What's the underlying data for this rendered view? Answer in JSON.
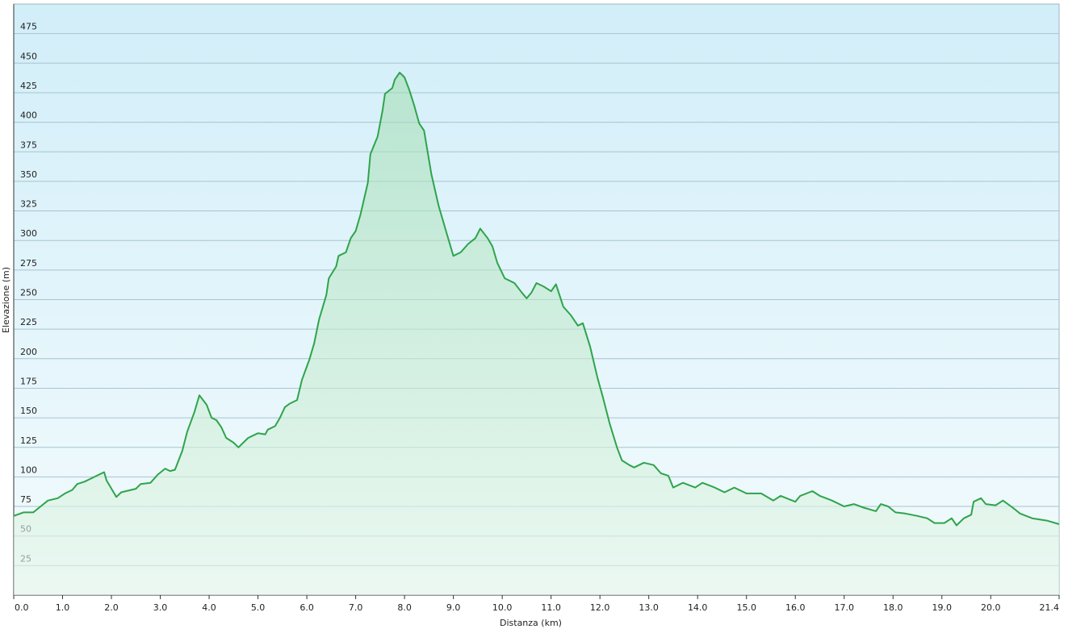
{
  "chart_data": {
    "type": "area",
    "xlabel": "Distanza  (km)",
    "ylabel": "Elevazione (m)",
    "xlim": [
      0,
      21.4
    ],
    "ylim": [
      0,
      500
    ],
    "xticks": [
      {
        "value": 0,
        "label": "0.0"
      },
      {
        "value": 1,
        "label": "1.0"
      },
      {
        "value": 2,
        "label": "2.0"
      },
      {
        "value": 3,
        "label": "3.0"
      },
      {
        "value": 4,
        "label": "4.0"
      },
      {
        "value": 5,
        "label": "5.0"
      },
      {
        "value": 6,
        "label": "6.0"
      },
      {
        "value": 7,
        "label": "7.0"
      },
      {
        "value": 8,
        "label": "8.0"
      },
      {
        "value": 9,
        "label": "9.0"
      },
      {
        "value": 10,
        "label": "10.0"
      },
      {
        "value": 11,
        "label": "11.0"
      },
      {
        "value": 12,
        "label": "12.0"
      },
      {
        "value": 13,
        "label": "13.0"
      },
      {
        "value": 14,
        "label": "14.0"
      },
      {
        "value": 15,
        "label": "15.0"
      },
      {
        "value": 16,
        "label": "16.0"
      },
      {
        "value": 17,
        "label": "17.0"
      },
      {
        "value": 18,
        "label": "18.0"
      },
      {
        "value": 19,
        "label": "19.0"
      },
      {
        "value": 20,
        "label": "20.0"
      },
      21.4
    ],
    "yticks": [
      25,
      50,
      75,
      100,
      125,
      150,
      175,
      200,
      225,
      250,
      275,
      300,
      325,
      350,
      375,
      400,
      425,
      450,
      475
    ],
    "grid": true,
    "color": "#2ea44b",
    "x": [
      0,
      0.2,
      0.4,
      0.55,
      0.7,
      0.9,
      1.05,
      1.2,
      1.3,
      1.45,
      1.6,
      1.85,
      1.9,
      2.1,
      2.2,
      2.3,
      2.5,
      2.6,
      2.8,
      2.95,
      3.1,
      3.2,
      3.3,
      3.45,
      3.55,
      3.7,
      3.75,
      3.8,
      3.95,
      4.05,
      4.15,
      4.25,
      4.35,
      4.5,
      4.6,
      4.7,
      4.8,
      5.0,
      5.15,
      5.2,
      5.35,
      5.45,
      5.55,
      5.65,
      5.8,
      5.9,
      6.05,
      6.15,
      6.25,
      6.4,
      6.45,
      6.6,
      6.65,
      6.8,
      6.9,
      7.0,
      7.1,
      7.25,
      7.3,
      7.45,
      7.55,
      7.6,
      7.75,
      7.8,
      7.9,
      8.0,
      8.1,
      8.2,
      8.3,
      8.4,
      8.55,
      8.7,
      8.85,
      9.0,
      9.15,
      9.3,
      9.45,
      9.55,
      9.7,
      9.8,
      9.9,
      10.05,
      10.25,
      10.4,
      10.5,
      10.6,
      10.7,
      10.85,
      11.0,
      11.1,
      11.25,
      11.4,
      11.55,
      11.65,
      11.8,
      11.95,
      12.05,
      12.2,
      12.35,
      12.45,
      12.6,
      12.7,
      12.9,
      13.1,
      13.25,
      13.4,
      13.5,
      13.7,
      13.95,
      14.1,
      14.35,
      14.55,
      14.75,
      15.0,
      15.3,
      15.55,
      15.7,
      16.0,
      16.1,
      16.35,
      16.5,
      16.75,
      17.0,
      17.2,
      17.4,
      17.65,
      17.75,
      17.9,
      18.05,
      18.25,
      18.5,
      18.7,
      18.85,
      19.05,
      19.2,
      19.3,
      19.45,
      19.6,
      19.65,
      19.8,
      19.9,
      20.1,
      20.25,
      20.45,
      20.6,
      20.85,
      21.15,
      21.4
    ],
    "values": [
      67,
      70,
      70,
      75,
      80,
      82,
      86,
      89,
      94,
      96,
      99,
      104,
      97,
      83,
      87,
      88,
      90,
      94,
      95,
      102,
      107,
      105,
      106,
      122,
      138,
      155,
      162,
      169,
      161,
      150,
      148,
      142,
      133,
      129,
      125,
      129,
      133,
      137,
      136,
      140,
      143,
      150,
      159,
      162,
      165,
      182,
      199,
      213,
      233,
      254,
      268,
      278,
      287,
      290,
      302,
      308,
      322,
      349,
      373,
      388,
      410,
      424,
      429,
      436,
      442,
      438,
      427,
      414,
      399,
      393,
      356,
      329,
      308,
      287,
      290,
      297,
      302,
      310,
      302,
      295,
      281,
      268,
      264,
      256,
      251,
      256,
      264,
      261,
      257,
      263,
      244,
      237,
      228,
      230,
      210,
      184,
      169,
      145,
      125,
      114,
      110,
      108,
      112,
      110,
      103,
      101,
      91,
      95,
      91,
      95,
      91,
      87,
      91,
      86,
      86,
      80,
      84,
      79,
      84,
      88,
      84,
      80,
      75,
      77,
      74,
      71,
      77,
      75,
      70,
      69,
      67,
      65,
      61,
      61,
      65,
      59,
      65,
      68,
      79,
      82,
      77,
      76,
      80,
      74,
      69,
      65,
      63,
      60
    ]
  }
}
